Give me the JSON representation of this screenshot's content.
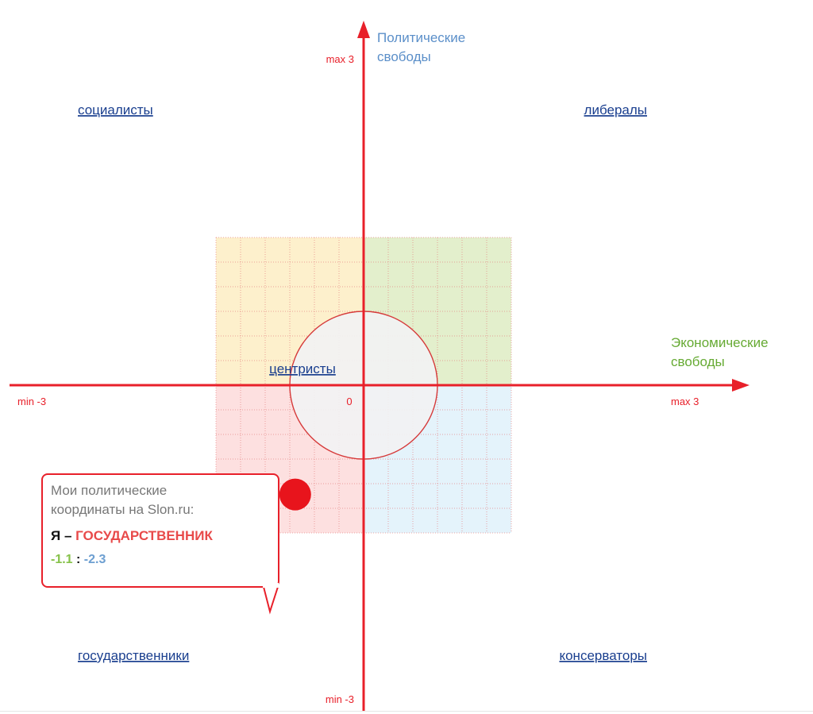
{
  "chart_data": {
    "type": "scatter",
    "x_axis": {
      "title": "Экономические свободы",
      "min_label": "min -3",
      "max_label": "max 3",
      "min": -3,
      "max": 3
    },
    "y_axis": {
      "title": "Политические свободы",
      "min_label": "min -3",
      "max_label": "max 3",
      "min": -3,
      "max": 3
    },
    "origin_label": "0",
    "grid": true,
    "quadrants": [
      {
        "name": "социалисты",
        "position": "top-left",
        "color": "#fdf0cc"
      },
      {
        "name": "либералы",
        "position": "top-right",
        "color": "#e3efcc"
      },
      {
        "name": "государственники",
        "position": "bottom-left",
        "color": "#fde0e0"
      },
      {
        "name": "консерваторы",
        "position": "bottom-right",
        "color": "#e4f3fb"
      }
    ],
    "center_region": {
      "name": "центристы",
      "radius": 1.5,
      "color": "#f2f2f3"
    },
    "points": [
      {
        "x": -1.1,
        "y": -2.3
      }
    ]
  },
  "bubble": {
    "line1": "Мои политические",
    "line2": "координаты на Slon.ru:",
    "me": "Я – ",
    "type": "ГОСУДАРСТВЕННИК",
    "x_value": "-1.1",
    "separator": " : ",
    "y_value": "-2.3"
  },
  "colors": {
    "axis": "#e8202a",
    "grid": "#e48080",
    "link": "#1a3f8f"
  }
}
